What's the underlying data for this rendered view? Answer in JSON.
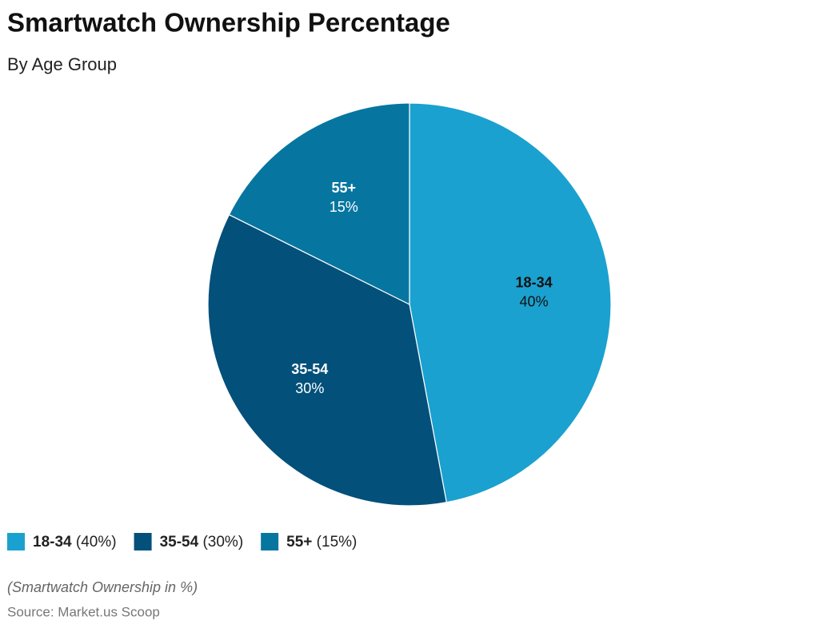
{
  "chart_data": {
    "type": "pie",
    "title": "Smartwatch Ownership Percentage",
    "subtitle": "By Age Group",
    "categories": [
      "18-34",
      "35-54",
      "55+"
    ],
    "values": [
      40,
      30,
      15
    ],
    "value_labels": [
      "40%",
      "30%",
      "15%"
    ],
    "legend_value_labels": [
      "(40%)",
      "(30%)",
      "(15%)"
    ],
    "colors": [
      "#1aa1cf",
      "#03507a",
      "#0676a0"
    ],
    "note": "(Smartwatch Ownership in %)",
    "source": "Source: Market.us Scoop"
  }
}
